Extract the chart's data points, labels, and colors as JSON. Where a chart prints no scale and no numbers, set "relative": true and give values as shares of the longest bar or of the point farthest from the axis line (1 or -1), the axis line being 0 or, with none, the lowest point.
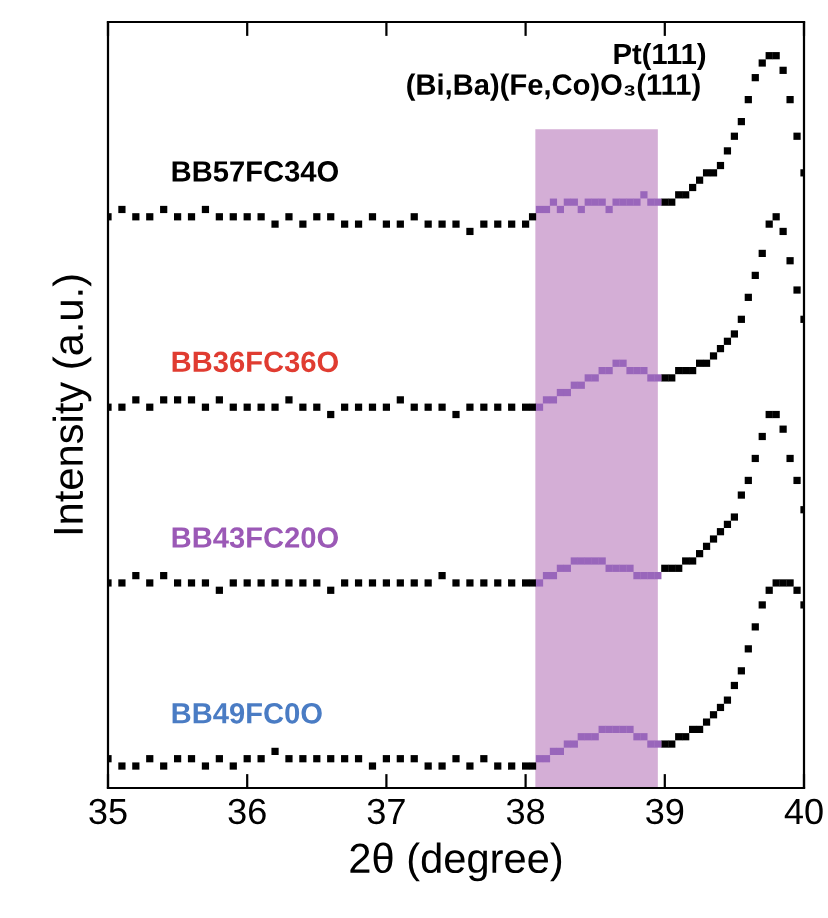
{
  "chart_data": {
    "type": "scatter",
    "relative": true,
    "xlabel": "2θ (degree)",
    "ylabel": "Intensity (a.u.)",
    "annotations": [
      "(Bi,Ba)(Fe,Co)O₃(111)",
      "Pt(111)"
    ],
    "xlim": [
      35,
      40
    ],
    "xticks": [
      35,
      36,
      37,
      38,
      39,
      40
    ],
    "tick_labels": "x",
    "grid": false,
    "legend": false,
    "marker": "square",
    "bands": [
      {
        "axis": "x",
        "from": 38.07,
        "to": 38.95,
        "color": "#d4aed6"
      }
    ],
    "x": [
      35.0,
      35.1,
      35.2,
      35.3,
      35.4,
      35.5,
      35.6,
      35.7,
      35.8,
      35.9,
      36.0,
      36.1,
      36.2,
      36.3,
      36.4,
      36.5,
      36.6,
      36.7,
      36.8,
      36.9,
      37.0,
      37.1,
      37.2,
      37.3,
      37.4,
      37.5,
      37.6,
      37.7,
      37.8,
      37.9,
      38.0,
      38.05,
      null,
      null,
      null,
      null,
      null,
      null,
      null,
      null,
      null,
      null,
      null,
      null,
      null,
      null,
      null,
      null,
      null,
      null,
      39.0,
      39.05,
      39.1,
      39.15,
      39.2,
      39.25,
      39.3,
      39.35,
      39.4,
      39.45,
      39.5,
      39.55,
      39.6,
      39.65,
      39.7,
      39.75,
      39.8,
      39.85,
      39.9,
      39.95,
      40.0
    ],
    "series": [
      {
        "name": "BB57FC34O",
        "color": "#000000",
        "values": [
          0.78,
          0.79,
          0.78,
          0.78,
          0.79,
          0.78,
          0.78,
          0.79,
          0.78,
          0.78,
          0.78,
          0.78,
          0.77,
          0.78,
          0.77,
          0.78,
          0.78,
          0.77,
          0.77,
          0.78,
          0.77,
          0.77,
          0.78,
          0.77,
          0.77,
          0.77,
          0.76,
          0.77,
          0.77,
          0.77,
          0.77,
          0.78,
          null,
          null,
          null,
          null,
          null,
          null,
          null,
          null,
          null,
          null,
          null,
          null,
          null,
          null,
          null,
          null,
          null,
          null,
          0.8,
          0.8,
          0.81,
          0.81,
          0.82,
          0.83,
          0.84,
          0.84,
          0.85,
          0.87,
          0.89,
          0.91,
          0.94,
          0.97,
          0.99,
          1.0,
          1.0,
          0.98,
          0.94,
          0.89,
          0.84
        ]
      },
      {
        "color": "#9966bb",
        "x": [
          38.1,
          38.15,
          38.2,
          38.25,
          38.3,
          38.35,
          38.4,
          38.45,
          38.5,
          38.55,
          38.6,
          38.65,
          38.7,
          38.75,
          38.8,
          38.85,
          38.9,
          38.95
        ],
        "values": [
          0.79,
          0.79,
          0.8,
          0.79,
          0.8,
          0.8,
          0.79,
          0.8,
          0.8,
          0.8,
          0.79,
          0.8,
          0.8,
          0.8,
          0.8,
          0.81,
          0.8,
          0.8
        ]
      },
      {
        "name": "BB36FC36O",
        "color": "#000000",
        "values": [
          0.52,
          0.52,
          0.53,
          0.52,
          0.53,
          0.53,
          0.53,
          0.52,
          0.53,
          0.52,
          0.52,
          0.52,
          0.52,
          0.53,
          0.52,
          0.52,
          0.51,
          0.52,
          0.52,
          0.52,
          0.52,
          0.53,
          0.52,
          0.52,
          0.52,
          0.51,
          0.52,
          0.52,
          0.52,
          0.52,
          0.52,
          0.52,
          null,
          null,
          null,
          null,
          null,
          null,
          null,
          null,
          null,
          null,
          null,
          null,
          null,
          null,
          null,
          null,
          null,
          null,
          0.56,
          0.56,
          0.57,
          0.57,
          0.57,
          0.58,
          0.58,
          0.59,
          0.6,
          0.61,
          0.62,
          0.64,
          0.67,
          0.7,
          0.73,
          0.77,
          0.78,
          0.76,
          0.72,
          0.68,
          0.64
        ]
      },
      {
        "color": "#9966bb",
        "x": [
          38.1,
          38.15,
          38.2,
          38.25,
          38.3,
          38.35,
          38.4,
          38.45,
          38.5,
          38.55,
          38.6,
          38.65,
          38.7,
          38.75,
          38.8,
          38.85,
          38.9,
          38.95
        ],
        "values": [
          0.52,
          0.53,
          0.53,
          0.54,
          0.54,
          0.55,
          0.55,
          0.56,
          0.56,
          0.57,
          0.57,
          0.58,
          0.58,
          0.57,
          0.57,
          0.57,
          0.56,
          0.56
        ]
      },
      {
        "name": "BB43FC20O",
        "color": "#000000",
        "values": [
          0.28,
          0.28,
          0.29,
          0.28,
          0.29,
          0.28,
          0.28,
          0.28,
          0.27,
          0.28,
          0.28,
          0.28,
          0.28,
          0.28,
          0.28,
          0.28,
          0.27,
          0.28,
          0.28,
          0.28,
          0.28,
          0.28,
          0.28,
          0.28,
          0.29,
          0.28,
          0.28,
          0.28,
          0.28,
          0.28,
          0.28,
          0.28,
          null,
          null,
          null,
          null,
          null,
          null,
          null,
          null,
          null,
          null,
          null,
          null,
          null,
          null,
          null,
          null,
          null,
          null,
          0.3,
          0.3,
          0.3,
          0.31,
          0.31,
          0.32,
          0.33,
          0.34,
          0.35,
          0.36,
          0.37,
          0.4,
          0.42,
          0.45,
          0.48,
          0.51,
          0.51,
          0.49,
          0.45,
          0.42,
          0.38
        ]
      },
      {
        "color": "#9966bb",
        "x": [
          38.1,
          38.15,
          38.2,
          38.25,
          38.3,
          38.35,
          38.4,
          38.45,
          38.5,
          38.55,
          38.6,
          38.65,
          38.7,
          38.75,
          38.8,
          38.85,
          38.9,
          38.95
        ],
        "values": [
          0.28,
          0.29,
          0.29,
          0.3,
          0.3,
          0.31,
          0.31,
          0.31,
          0.31,
          0.31,
          0.3,
          0.3,
          0.3,
          0.3,
          0.29,
          0.29,
          0.29,
          0.29
        ]
      },
      {
        "name": "BB49FC0O",
        "color": "#000000",
        "values": [
          0.04,
          0.03,
          0.03,
          0.04,
          0.03,
          0.04,
          0.04,
          0.03,
          0.04,
          0.03,
          0.04,
          0.04,
          0.05,
          0.04,
          0.04,
          0.04,
          0.04,
          0.04,
          0.04,
          0.03,
          0.04,
          0.04,
          0.04,
          0.03,
          0.03,
          0.04,
          0.03,
          0.04,
          0.03,
          0.03,
          0.03,
          0.03,
          null,
          null,
          null,
          null,
          null,
          null,
          null,
          null,
          null,
          null,
          null,
          null,
          null,
          null,
          null,
          null,
          null,
          null,
          0.06,
          0.06,
          0.07,
          0.07,
          0.08,
          0.08,
          0.09,
          0.1,
          0.11,
          0.12,
          0.14,
          0.16,
          0.19,
          0.22,
          0.25,
          0.27,
          0.28,
          0.28,
          0.28,
          0.27,
          0.25
        ]
      },
      {
        "color": "#9966bb",
        "x": [
          38.1,
          38.15,
          38.2,
          38.25,
          38.3,
          38.35,
          38.4,
          38.45,
          38.5,
          38.55,
          38.6,
          38.65,
          38.7,
          38.75,
          38.8,
          38.85,
          38.9,
          38.95
        ],
        "values": [
          0.04,
          0.04,
          0.05,
          0.05,
          0.06,
          0.06,
          0.07,
          0.07,
          0.07,
          0.08,
          0.08,
          0.08,
          0.08,
          0.08,
          0.07,
          0.07,
          0.06,
          0.06
        ]
      }
    ]
  }
}
